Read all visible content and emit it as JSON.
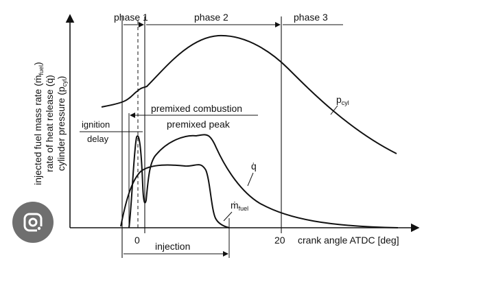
{
  "phases": {
    "p1": "phase 1",
    "p2": "phase 2",
    "p3": "phase 3"
  },
  "y_axis_lines": {
    "line1": "injected fuel mass rate (",
    "line1_sym": "ṁ",
    "line1_sub": "fuel",
    "line2": "rate of heat release (q̇)",
    "line3": "cylinder pressure (p",
    "line3_sub": "cyl"
  },
  "x_axis": {
    "tick_0": "0",
    "tick_20": "20",
    "label": "crank angle  ATDC [deg]"
  },
  "annotations": {
    "ignition_1": "ignition",
    "ignition_2": "delay",
    "premixed_combustion": "premixed combustion",
    "premixed_peak": "premixed peak",
    "injection": "injection"
  },
  "curves": {
    "pcyl": "p",
    "pcyl_sub": "cyl",
    "q": "q̇",
    "mfuel": "ṁ",
    "mfuel_sub": "fuel"
  },
  "colors": {
    "line": "#111111",
    "badge": "#6f6f6f"
  },
  "icons": {
    "badge": "google-lens-icon"
  }
}
